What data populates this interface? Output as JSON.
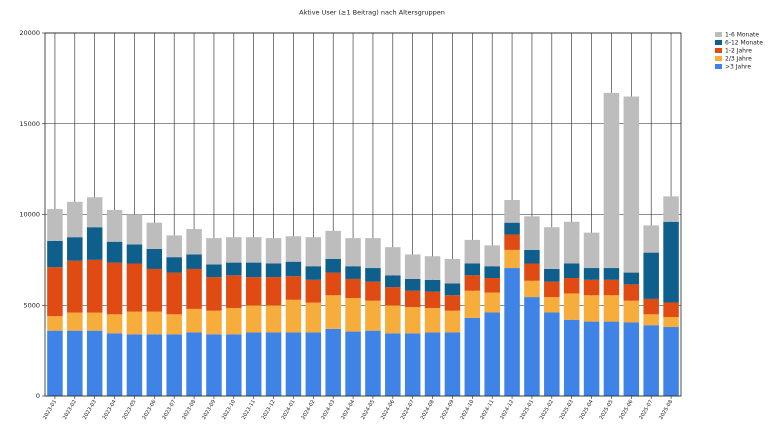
{
  "chart_data": {
    "type": "bar",
    "stacked": true,
    "title": "Aktive User (≥1 Beitrag) nach Altersgruppen",
    "xlabel": "",
    "ylabel": "",
    "ylim": [
      0,
      20000
    ],
    "yticks": [
      0,
      5000,
      10000,
      15000,
      20000
    ],
    "grid": true,
    "legend_position": "top-right",
    "categories": [
      "2023-01",
      "2023-02",
      "2023-03",
      "2023-04",
      "2023-05",
      "2023-06",
      "2023-07",
      "2023-08",
      "2023-09",
      "2023-10",
      "2023-11",
      "2023-12",
      "2024-01",
      "2024-02",
      "2024-03",
      "2024-04",
      "2024-05",
      "2024-06",
      "2024-07",
      "2024-08",
      "2024-09",
      "2024-10",
      "2024-11",
      "2024-12",
      "2025-01",
      "2025-02",
      "2025-03",
      "2025-04",
      "2025-05",
      "2025-06",
      "2025-07",
      "2025-08"
    ],
    "series": [
      {
        "name": ">3 Jahre",
        "color": "#3f83e6",
        "values": [
          3600,
          3600,
          3600,
          3450,
          3400,
          3400,
          3400,
          3500,
          3400,
          3400,
          3500,
          3500,
          3500,
          3500,
          3700,
          3550,
          3600,
          3450,
          3450,
          3500,
          3500,
          4300,
          4600,
          7050,
          5450,
          4600,
          4200,
          4100,
          4100,
          4050,
          3900,
          3800
        ]
      },
      {
        "name": "2/3 Jahre",
        "color": "#f6ad3c",
        "values": [
          800,
          1000,
          1000,
          1050,
          1250,
          1250,
          1100,
          1300,
          1300,
          1450,
          1500,
          1500,
          1800,
          1650,
          1850,
          1850,
          1650,
          1550,
          1450,
          1350,
          1200,
          1500,
          1100,
          1000,
          900,
          850,
          1450,
          1450,
          1450,
          1200,
          600,
          550
        ]
      },
      {
        "name": "1-2 Jahre",
        "color": "#e04a13",
        "values": [
          2700,
          2850,
          2900,
          2850,
          2650,
          2350,
          2300,
          2200,
          1850,
          1800,
          1550,
          1550,
          1300,
          1250,
          1250,
          1050,
          1050,
          1000,
          900,
          900,
          850,
          850,
          800,
          850,
          950,
          850,
          850,
          850,
          850,
          900,
          850,
          800
        ]
      },
      {
        "name": "6-12 Monate",
        "color": "#0f5f8c",
        "values": [
          1450,
          1300,
          1800,
          1150,
          1050,
          1100,
          850,
          800,
          700,
          700,
          800,
          750,
          800,
          750,
          750,
          700,
          750,
          650,
          650,
          650,
          650,
          650,
          650,
          650,
          750,
          700,
          800,
          650,
          650,
          650,
          2550,
          4450
        ]
      },
      {
        "name": "1-6 Monate",
        "color": "#bdbdbd",
        "values": [
          1750,
          1950,
          1650,
          1750,
          1650,
          1450,
          1200,
          1400,
          1450,
          1400,
          1400,
          1400,
          1400,
          1600,
          1550,
          1550,
          1650,
          1550,
          1350,
          1300,
          1350,
          1300,
          1150,
          1250,
          1850,
          2300,
          2300,
          1950,
          9650,
          9700,
          1500,
          1400
        ]
      }
    ]
  }
}
